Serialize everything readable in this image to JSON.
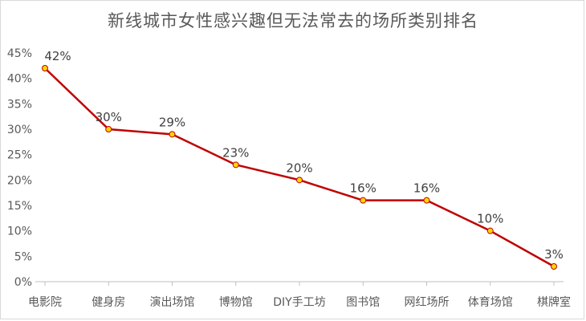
{
  "chart_data": {
    "type": "line",
    "title": "新线城市女性感兴趣但无法常去的场所类别排名",
    "xlabel": "",
    "ylabel": "",
    "categories": [
      "电影院",
      "健身房",
      "演出场馆",
      "博物馆",
      "DIY手工坊",
      "图书馆",
      "网红场所",
      "体育场馆",
      "棋牌室"
    ],
    "series": [
      {
        "values": [
          42,
          30,
          29,
          23,
          20,
          16,
          16,
          10,
          3
        ],
        "data_labels": [
          "42%",
          "30%",
          "29%",
          "23%",
          "20%",
          "16%",
          "16%",
          "10%",
          "3%"
        ]
      }
    ],
    "ylim": [
      0,
      45
    ],
    "yticks": [
      "0%",
      "5%",
      "10%",
      "15%",
      "20%",
      "25%",
      "30%",
      "35%",
      "40%",
      "45%"
    ],
    "grid": false,
    "legend": "none",
    "colors": {
      "line": "#c00000",
      "marker_fill": "#ffd700",
      "marker_stroke": "#c00000",
      "axis": "#bfbfbf",
      "text": "#595959"
    }
  }
}
